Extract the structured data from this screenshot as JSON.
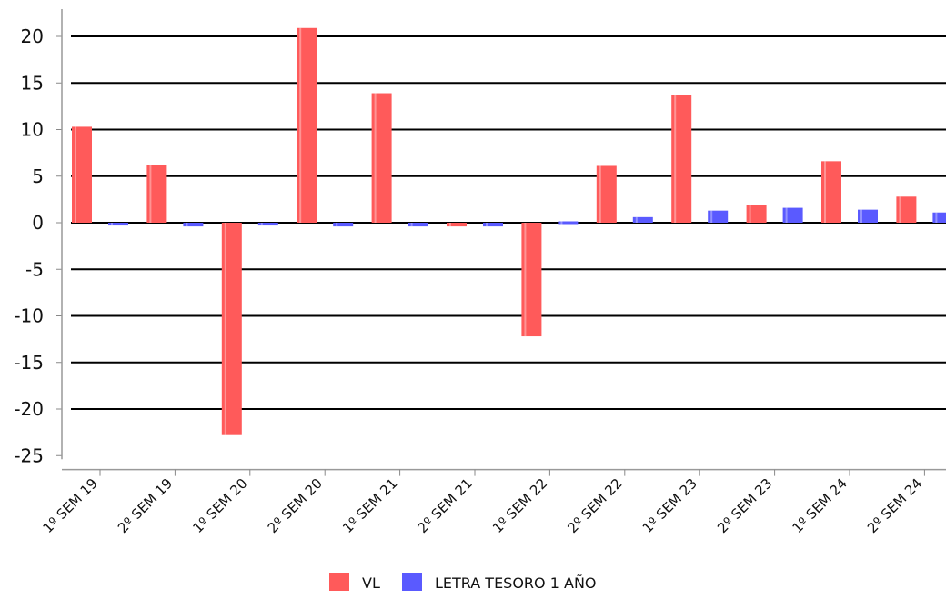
{
  "chart_data": {
    "type": "bar",
    "categories": [
      "1º SEM 19",
      "2º SEM 19",
      "1º SEM 20",
      "2º SEM 20",
      "1º SEM 21",
      "2º SEM 21",
      "1º SEM 22",
      "2º SEM 22",
      "1º SEM 23",
      "2º SEM 23",
      "1º SEM 24",
      "2º SEM 24"
    ],
    "series": [
      {
        "name": "VL",
        "color": "#ff5a5a",
        "values": [
          10.3,
          6.2,
          -22.8,
          20.9,
          13.9,
          -0.4,
          -12.2,
          6.1,
          13.7,
          1.9,
          6.6,
          2.8
        ]
      },
      {
        "name": "LETRA TESORO 1 AÑO",
        "color": "#5a5aff",
        "values": [
          -0.3,
          -0.4,
          -0.3,
          -0.4,
          -0.4,
          -0.4,
          -0.2,
          0.6,
          1.3,
          1.6,
          1.4,
          1.1
        ]
      }
    ],
    "yticks": [
      20,
      15,
      10,
      5,
      0,
      -5,
      -10,
      -15,
      -20,
      -25
    ],
    "ylim": [
      -25,
      23
    ],
    "grid": true,
    "legend_position": "bottom-center",
    "title": "",
    "xlabel": "",
    "ylabel": ""
  }
}
